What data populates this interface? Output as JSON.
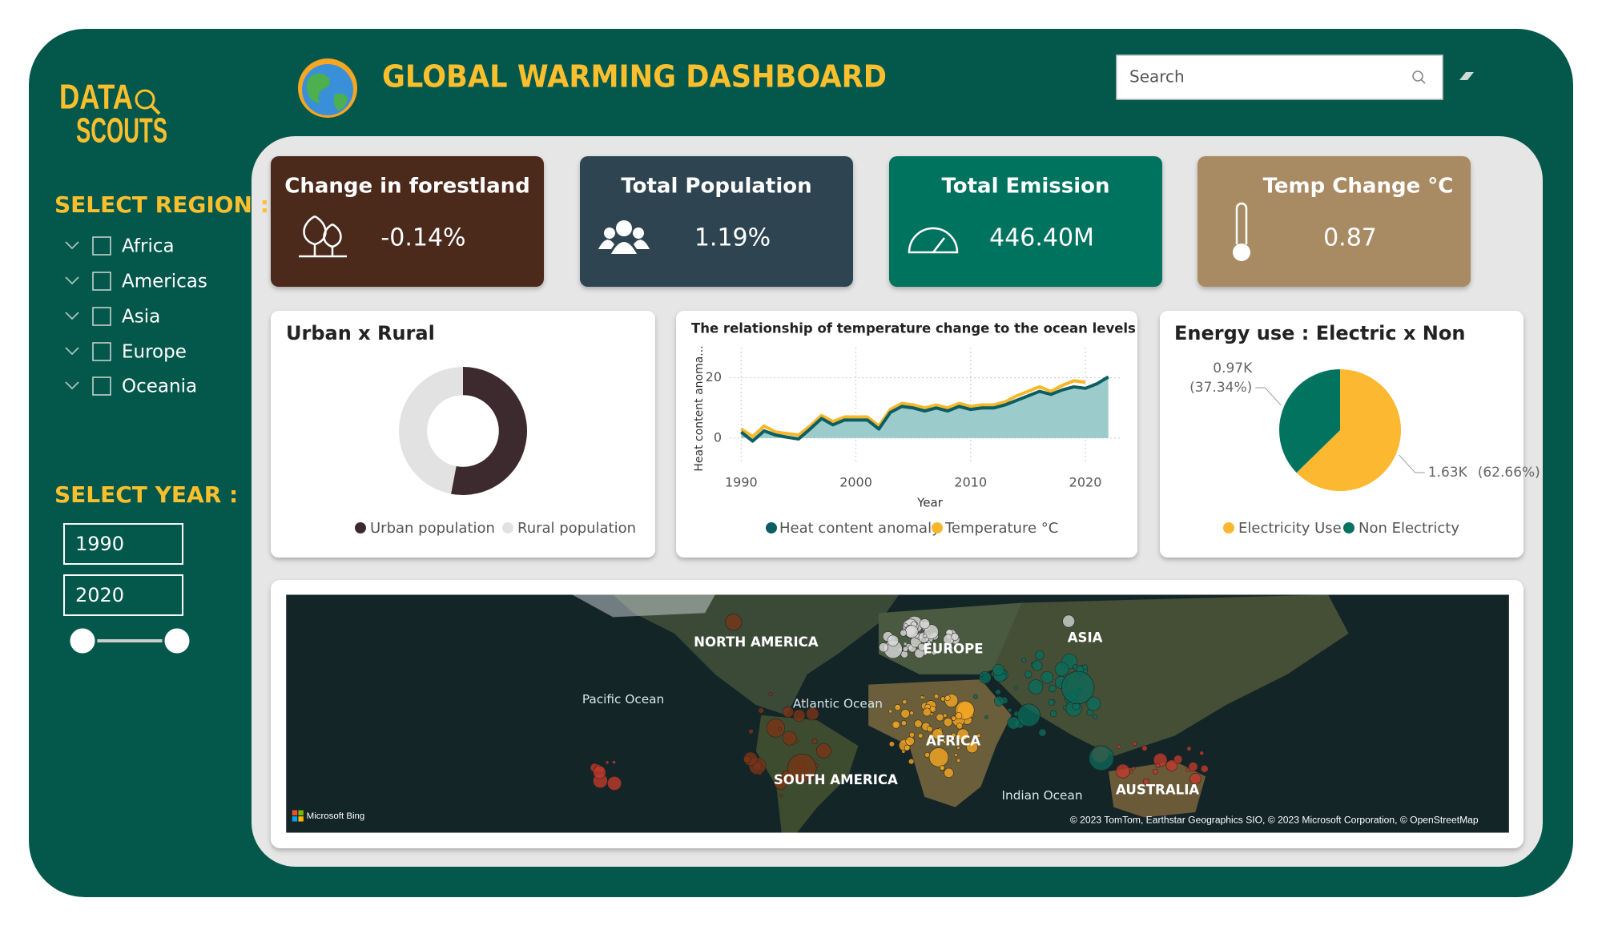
{
  "logo": {
    "line1": "DATA",
    "line2": "SCOUTS"
  },
  "header": {
    "title": "GLOBAL WARMING DASHBOARD",
    "search_placeholder": "Search"
  },
  "sidebar": {
    "region_label": "SELECT REGION :",
    "regions": [
      "Africa",
      "Americas",
      "Asia",
      "Europe",
      "Oceania"
    ],
    "year_label": "SELECT YEAR :",
    "year_start": "1990",
    "year_end": "2020"
  },
  "kpis": [
    {
      "title": "Change in forestland",
      "value": "-0.14%",
      "color": "#4b2a1f"
    },
    {
      "title": "Total Population",
      "value": "1.19%",
      "color": "#2e4451"
    },
    {
      "title": "Total Emission",
      "value": "446.40M",
      "color": "#02735f"
    },
    {
      "title": "Temp Change °C",
      "value": "0.87",
      "color": "#a98b63"
    }
  ],
  "chart_data": [
    {
      "type": "pie",
      "donut": true,
      "title": "Urban x Rural",
      "categories": [
        "Urban population",
        "Rural population"
      ],
      "values": [
        53,
        47
      ],
      "colors": [
        "#3d2a2e",
        "#e2e2e2"
      ]
    },
    {
      "type": "line",
      "title": "The relationship of temperature change to the ocean levels",
      "x_label": "Year",
      "y_label": "Heat content anoma...",
      "x": [
        1990,
        1991,
        1992,
        1993,
        1994,
        1995,
        1996,
        1997,
        1998,
        1999,
        2000,
        2001,
        2002,
        2003,
        2004,
        2005,
        2006,
        2007,
        2008,
        2009,
        2010,
        2011,
        2012,
        2013,
        2014,
        2015,
        2016,
        2017,
        2018,
        2019,
        2020,
        2021,
        2022
      ],
      "series": [
        {
          "name": "Heat content anomaly",
          "color": "#0b5e63",
          "area_color": "#9ccbcb",
          "values": [
            2,
            -1,
            2.4,
            1,
            0.3,
            -0.3,
            3,
            6.5,
            4.4,
            6,
            6,
            6,
            3,
            8.5,
            10.5,
            10,
            9,
            10,
            9,
            10.5,
            9.5,
            10,
            10,
            11,
            12.5,
            14,
            15.5,
            14.5,
            16,
            17,
            16.5,
            18,
            20.3
          ]
        },
        {
          "name": "Temperature °C",
          "color": "#f6b72b",
          "values": [
            3,
            0.5,
            4,
            2,
            1.5,
            1,
            4,
            7.5,
            5.5,
            7,
            7,
            7,
            4,
            9.5,
            11.5,
            11,
            10,
            11,
            10,
            11.5,
            10.5,
            11,
            11,
            12,
            14,
            15.5,
            17,
            15.5,
            17.5,
            19,
            18.5,
            null,
            null
          ]
        }
      ],
      "xlim": [
        1989,
        2023
      ],
      "ylim": [
        -8,
        30
      ],
      "xticks": [
        1990,
        2000,
        2010,
        2020
      ],
      "yticks": [
        0,
        20
      ],
      "grid": true
    },
    {
      "type": "pie",
      "donut": false,
      "title": "Energy use : Electric x Non",
      "categories": [
        "Electricity Use",
        "Non Electricty"
      ],
      "values": [
        1630,
        970
      ],
      "value_labels": [
        "1.63K",
        "0.97K"
      ],
      "percent_labels": [
        "(62.66%)",
        "(37.34%)"
      ],
      "colors": [
        "#fbb830",
        "#02735f"
      ]
    }
  ],
  "map": {
    "labels": [
      "NORTH AMERICA",
      "EUROPE",
      "ASIA",
      "AFRICA",
      "SOUTH AMERICA",
      "AUSTRALIA"
    ],
    "oceans": [
      "Pacific Ocean",
      "Atlantic Ocean",
      "Indian Ocean"
    ],
    "provider": "Microsoft Bing",
    "attribution": "© 2023 TomTom, Earthstar Geographics SIO, © 2023 Microsoft Corporation, © OpenStreetMap"
  }
}
